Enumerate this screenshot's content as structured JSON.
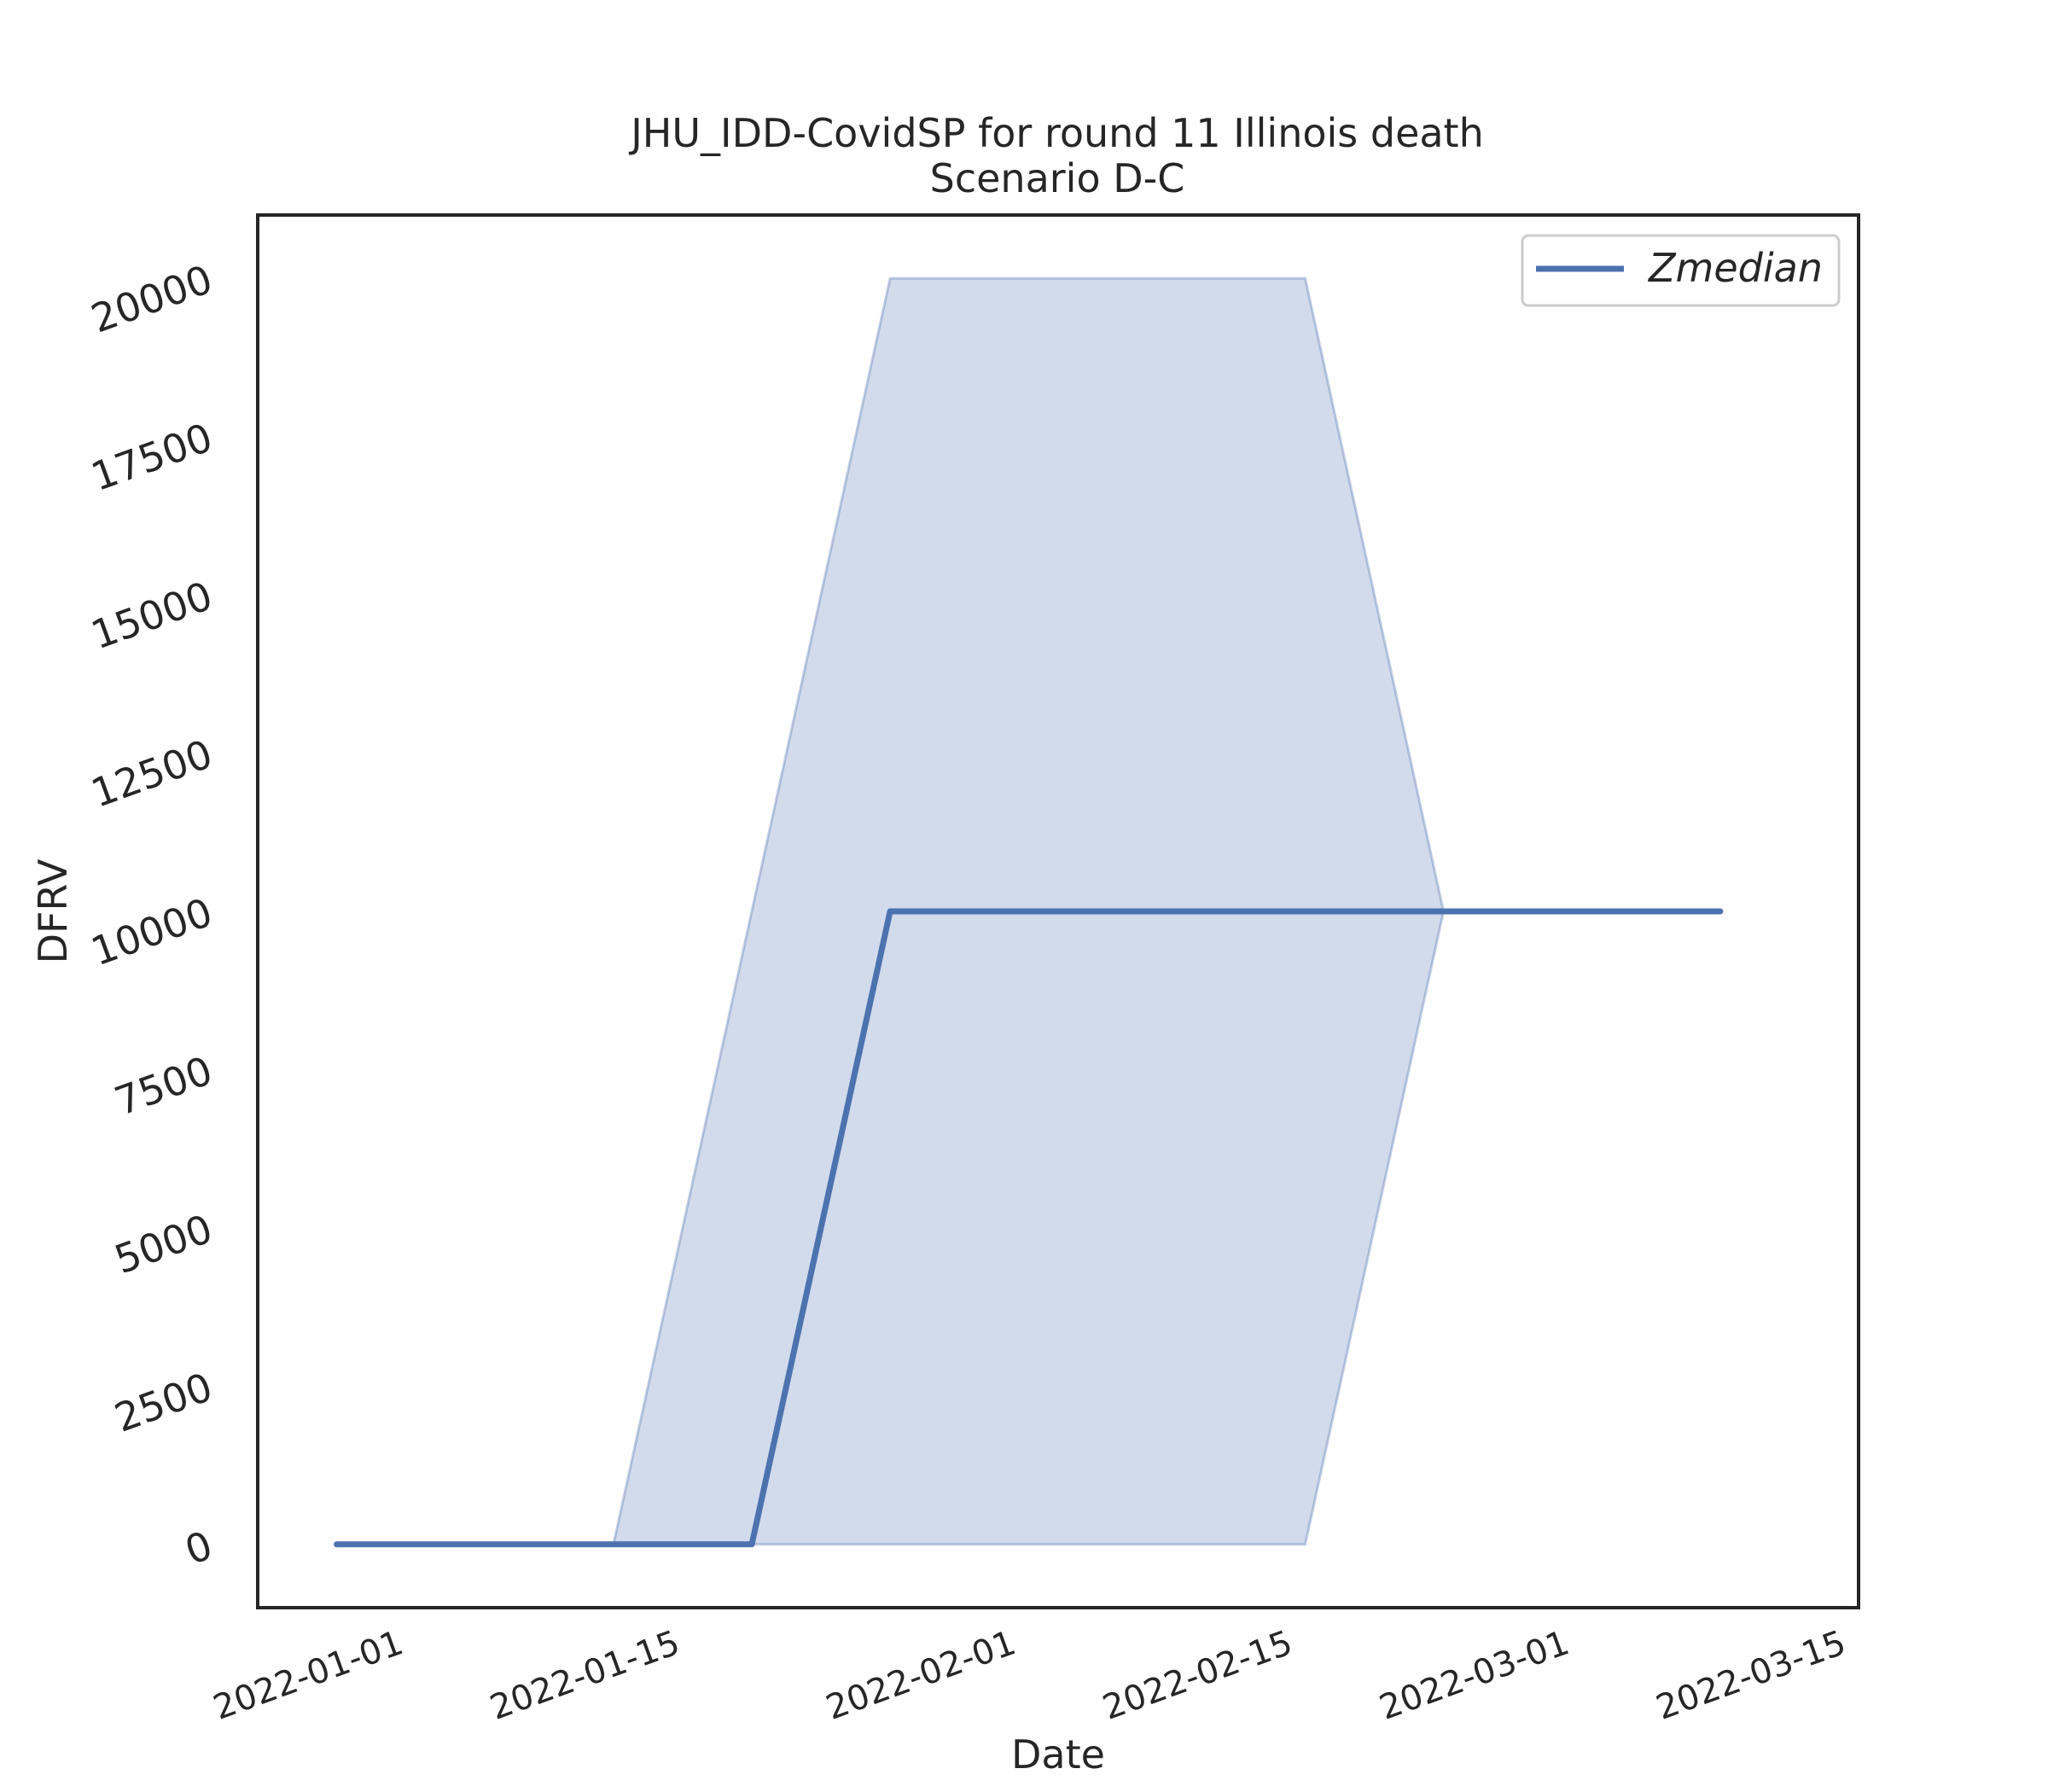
{
  "chart_data": {
    "type": "line",
    "title": "JHU_IDD-CovidSP for round 11 Illinois death",
    "subtitle": "Scenario D-C",
    "xlabel": "Date",
    "ylabel": "DFRV",
    "xlim": [
      "2021-12-26",
      "2022-03-17"
    ],
    "ylim": [
      -1000,
      21000
    ],
    "x_ticks": [
      "2022-01-01",
      "2022-01-15",
      "2022-02-01",
      "2022-02-15",
      "2022-03-01",
      "2022-03-15"
    ],
    "y_ticks": [
      0,
      2500,
      5000,
      7500,
      10000,
      12500,
      15000,
      17500,
      20000
    ],
    "grid": false,
    "legend": {
      "position": "top-right",
      "entries": [
        "Zmedian"
      ]
    },
    "series": [
      {
        "name": "Zmedian",
        "color": "#4c72b0",
        "x": [
          "2021-12-30",
          "2022-01-13",
          "2022-01-20",
          "2022-01-27",
          "2022-02-24",
          "2022-03-10"
        ],
        "values": [
          0,
          0,
          0,
          10000,
          10000,
          10000
        ]
      }
    ],
    "band": {
      "color": "#4c72b0",
      "x": [
        "2021-12-30",
        "2022-01-13",
        "2022-01-20",
        "2022-01-27",
        "2022-02-17",
        "2022-02-24",
        "2022-03-10"
      ],
      "lower": [
        0,
        0,
        0,
        0,
        0,
        10000,
        10000
      ],
      "upper": [
        0,
        0,
        10000,
        20000,
        20000,
        10000,
        10000
      ]
    }
  }
}
